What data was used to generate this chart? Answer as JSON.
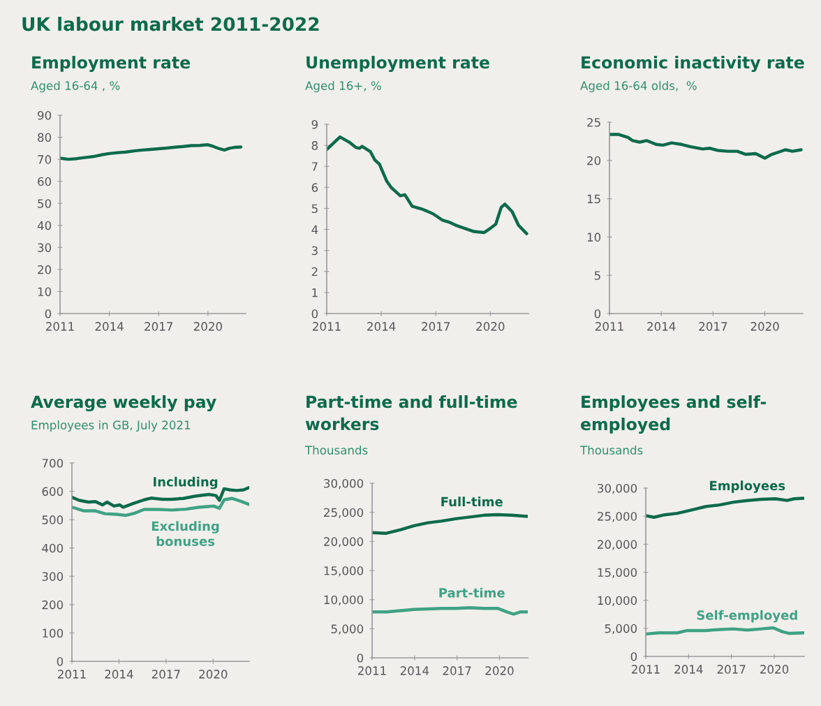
{
  "chart_data": [
    {
      "type": "line",
      "title": "Employment rate",
      "subtitle": "Aged 16-64 , %",
      "annotations": [
        "UK labour market 2011-2022"
      ],
      "xlim": [
        2011,
        2022.3
      ],
      "xticks": [
        2011,
        2014,
        2017,
        2020
      ],
      "ylim": [
        0,
        90
      ],
      "yticks": [
        0,
        10,
        20,
        30,
        40,
        50,
        60,
        70,
        80,
        90
      ],
      "grid": false,
      "legend": false,
      "series": [
        {
          "color": "#0d6b4a",
          "x": [
            2011,
            2011.5,
            2012,
            2012.5,
            2013,
            2013.5,
            2014,
            2014.5,
            2015,
            2015.5,
            2016,
            2016.5,
            2017,
            2017.5,
            2018,
            2018.5,
            2019,
            2019.5,
            2020,
            2020.3,
            2020.7,
            2021,
            2021.3,
            2021.6,
            2022
          ],
          "values": [
            70.5,
            70,
            70.3,
            70.8,
            71.2,
            72,
            72.6,
            73,
            73.3,
            73.8,
            74.2,
            74.5,
            74.8,
            75.1,
            75.5,
            75.8,
            76.2,
            76.3,
            76.6,
            75.9,
            74.8,
            74.2,
            75,
            75.4,
            75.6
          ]
        }
      ]
    },
    {
      "type": "line",
      "title": "Unemployment rate",
      "subtitle": "Aged 16+, %",
      "xlim": [
        2011,
        2022.1
      ],
      "xticks": [
        2011,
        2014,
        2017,
        2020
      ],
      "ylim": [
        0,
        9
      ],
      "yticks": [
        0,
        1,
        2,
        3,
        4,
        5,
        6,
        7,
        8,
        9
      ],
      "grid": false,
      "legend": false,
      "series": [
        {
          "color": "#0d6b4a",
          "x": [
            2011,
            2011.73,
            2012.24,
            2012.6,
            2012.8,
            2012.95,
            2013.4,
            2013.65,
            2013.9,
            2014.3,
            2014.54,
            2015.05,
            2015.3,
            2015.7,
            2016.3,
            2016.84,
            2017.35,
            2017.73,
            2018.1,
            2018.6,
            2019.1,
            2019.65,
            2020.0,
            2020.3,
            2020.6,
            2020.8,
            2021.2,
            2021.55,
            2022.0
          ],
          "values": [
            7.8,
            8.4,
            8.15,
            7.9,
            7.86,
            7.95,
            7.7,
            7.3,
            7.1,
            6.3,
            6.0,
            5.6,
            5.65,
            5.1,
            4.95,
            4.75,
            4.45,
            4.35,
            4.2,
            4.05,
            3.9,
            3.85,
            4.05,
            4.25,
            5.05,
            5.2,
            4.85,
            4.2,
            3.8
          ]
        }
      ]
    },
    {
      "type": "line",
      "title": "Economic inactivity rate",
      "subtitle": "Aged 16-64 olds,  %",
      "xlim": [
        2011,
        2022.2
      ],
      "xticks": [
        2011,
        2014,
        2017,
        2020
      ],
      "ylim": [
        0,
        25
      ],
      "yticks": [
        0,
        5,
        10,
        15,
        20,
        25
      ],
      "grid": false,
      "legend": false,
      "series": [
        {
          "color": "#0d6b4a",
          "x": [
            2011,
            2011.54,
            2012.08,
            2012.34,
            2012.75,
            2013.15,
            2013.7,
            2014.1,
            2014.6,
            2015.17,
            2015.7,
            2016.4,
            2016.8,
            2017.3,
            2017.85,
            2018.4,
            2018.9,
            2019.47,
            2020.0,
            2020.4,
            2020.8,
            2021.2,
            2021.6,
            2022.1
          ],
          "values": [
            23.4,
            23.4,
            23.0,
            22.6,
            22.4,
            22.6,
            22.1,
            22.0,
            22.3,
            22.1,
            21.8,
            21.5,
            21.6,
            21.3,
            21.2,
            21.2,
            20.8,
            20.9,
            20.3,
            20.8,
            21.1,
            21.4,
            21.2,
            21.4
          ]
        }
      ]
    },
    {
      "type": "line",
      "title": "Average weekly pay",
      "subtitle": "Employees in GB, July 2021",
      "xlim": [
        2011,
        2022.3
      ],
      "xticks": [
        2011,
        2014,
        2017,
        2020
      ],
      "ylim": [
        0,
        700
      ],
      "yticks": [
        0,
        100,
        200,
        300,
        400,
        500,
        600,
        700
      ],
      "grid": false,
      "legend": false,
      "series": [
        {
          "name": "Including",
          "color": "#0d6b4a",
          "x": [
            2011,
            2011.47,
            2012.06,
            2012.5,
            2012.95,
            2013.24,
            2013.68,
            2014.05,
            2014.27,
            2014.86,
            2015.6,
            2016.04,
            2016.78,
            2017.37,
            2018.1,
            2018.85,
            2019.73,
            2020.18,
            2020.4,
            2020.7,
            2021.06,
            2021.5,
            2021.94,
            2022.27
          ],
          "values": [
            579,
            568,
            562,
            564,
            552,
            562,
            548,
            552,
            544,
            556,
            570,
            576,
            572,
            572,
            575,
            583,
            589,
            585,
            568,
            609,
            605,
            603,
            605,
            613
          ]
        },
        {
          "name": "Excluding\nbonuses",
          "color": "#3fa283",
          "x": [
            2011,
            2011.77,
            2012.5,
            2013.1,
            2013.83,
            2014.42,
            2015.0,
            2015.6,
            2016.5,
            2017.37,
            2018.26,
            2019.14,
            2020.03,
            2020.4,
            2020.7,
            2021.2,
            2021.8,
            2022.27
          ],
          "values": [
            544,
            531,
            531,
            521,
            519,
            515,
            523,
            536,
            536,
            534,
            537,
            544,
            548,
            540,
            570,
            575,
            564,
            554
          ]
        }
      ]
    },
    {
      "type": "line",
      "title": "Part-time and full-time\nworkers",
      "subtitle": "Thousands",
      "xlim": [
        2011,
        2022.0
      ],
      "xticks": [
        2011,
        2014,
        2017,
        2020
      ],
      "ylim": [
        0,
        30000
      ],
      "yticks": [
        0,
        {
          "value": 5000,
          "label": "5,000"
        },
        {
          "value": 10000,
          "label": "10,000"
        },
        {
          "value": 15000,
          "label": "15,000"
        },
        {
          "value": 20000,
          "label": "20,000"
        },
        {
          "value": 25000,
          "label": "25,000"
        },
        {
          "value": 30000,
          "label": "30,000"
        }
      ],
      "grid": false,
      "legend": false,
      "series": [
        {
          "name": "Full-time",
          "color": "#0d6b4a",
          "x": [
            2011,
            2012.0,
            2013.0,
            2013.96,
            2014.94,
            2015.93,
            2016.9,
            2017.9,
            2018.9,
            2019.87,
            2020.85,
            2021.5,
            2022.0
          ],
          "values": [
            21500,
            21400,
            22000,
            22700,
            23200,
            23500,
            23900,
            24200,
            24500,
            24600,
            24500,
            24400,
            24300
          ]
        },
        {
          "name": "Part-time",
          "color": "#3fa283",
          "x": [
            2011,
            2012.0,
            2013.0,
            2013.96,
            2014.94,
            2015.93,
            2016.9,
            2017.9,
            2018.9,
            2019.87,
            2020.5,
            2021.0,
            2021.5,
            2022.0
          ],
          "values": [
            7900,
            7900,
            8100,
            8300,
            8400,
            8500,
            8500,
            8600,
            8500,
            8500,
            7900,
            7500,
            7900,
            7900
          ]
        }
      ]
    },
    {
      "type": "line",
      "title": "Employees and self-\nemployed",
      "subtitle": "Thousands",
      "xlim": [
        2011,
        2022.1
      ],
      "xticks": [
        2011,
        2014,
        2017,
        2020
      ],
      "ylim": [
        0,
        30000
      ],
      "yticks": [
        0,
        {
          "value": 5000,
          "label": "5,000"
        },
        {
          "value": 10000,
          "label": "10,000"
        },
        {
          "value": 15000,
          "label": "15,000"
        },
        {
          "value": 20000,
          "label": "20,000"
        },
        {
          "value": 25000,
          "label": "25,000"
        },
        {
          "value": 30000,
          "label": "30,000"
        }
      ],
      "grid": false,
      "legend": false,
      "series": [
        {
          "name": "Employees",
          "color": "#0d6b4a",
          "x": [
            2011,
            2011.57,
            2012.23,
            2013.2,
            2014.2,
            2015.17,
            2016.16,
            2017.14,
            2018.12,
            2019.1,
            2020.08,
            2020.9,
            2021.4,
            2022.05
          ],
          "values": [
            25100,
            24800,
            25200,
            25500,
            26100,
            26700,
            27000,
            27500,
            27800,
            28000,
            28100,
            27800,
            28100,
            28200
          ]
        },
        {
          "name": "Self-employed",
          "color": "#3fa283",
          "x": [
            2011,
            2011.9,
            2013.2,
            2013.85,
            2015.17,
            2016.16,
            2017.14,
            2018.12,
            2019.1,
            2019.92,
            2020.57,
            2021.06,
            2022.05
          ],
          "values": [
            4000,
            4200,
            4200,
            4600,
            4600,
            4800,
            4900,
            4700,
            4900,
            5100,
            4400,
            4100,
            4200
          ]
        }
      ]
    }
  ]
}
